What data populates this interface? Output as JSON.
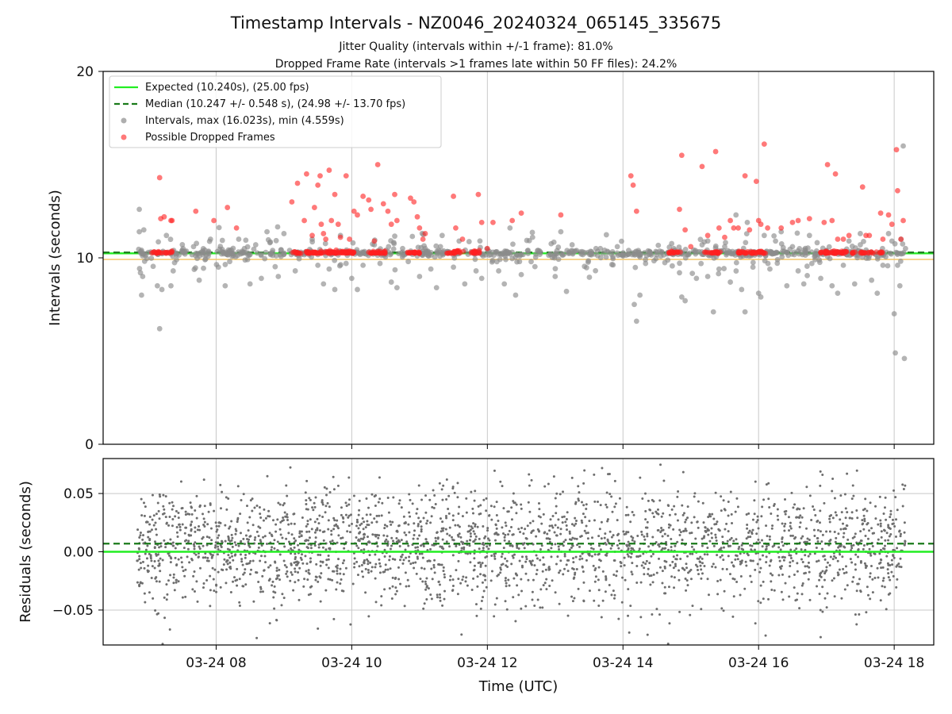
{
  "chart_data": [
    {
      "type": "scatter",
      "title": "Timestamp Intervals - NZ0046_20240324_065145_335675",
      "subtitle_lines": [
        "Jitter Quality (intervals within +/-1 frame): 81.0%",
        "Dropped Frame Rate (intervals >1 frames late within 50 FF files): 24.2%"
      ],
      "xlabel": "",
      "ylabel": "Intervals (seconds)",
      "xlim": [
        "2024-03-24T06:20",
        "2024-03-24T18:35"
      ],
      "ylim": [
        0,
        20
      ],
      "yticks": [
        "0",
        "10",
        "20"
      ],
      "grid": "x",
      "legend_position": "top-left",
      "expected_interval": 10.24,
      "median_interval": 10.247,
      "series": [
        {
          "name": "Expected (10.240s), (25.00 fps)",
          "kind": "hline",
          "value": 10.24,
          "color": "#22ee22"
        },
        {
          "name": "Median (10.247 +/- 0.548 s), (24.98 +/- 13.70 fps)",
          "kind": "hline-dashed",
          "value": 10.247,
          "color": "#1a7a1a"
        },
        {
          "name": "Intervals, max (16.023s), min (4.559s)",
          "kind": "scatter",
          "color": "#8c8c8c",
          "points": [
            [
              "06:52",
              12.6
            ],
            [
              "06:52",
              11.4
            ],
            [
              "06:53",
              9.2
            ],
            [
              "06:54",
              8.0
            ],
            [
              "06:56",
              11.5
            ],
            [
              "06:55",
              9.0
            ],
            [
              "07:08",
              8.5
            ],
            [
              "07:10",
              6.2
            ],
            [
              "07:12",
              8.3
            ],
            [
              "07:16",
              11.2
            ],
            [
              "07:20",
              8.5
            ],
            [
              "07:22",
              9.3
            ],
            [
              "07:25",
              9.9
            ],
            [
              "07:30",
              10.4
            ],
            [
              "07:40",
              10.6
            ],
            [
              "07:45",
              8.8
            ],
            [
              "07:55",
              11.0
            ],
            [
              "08:02",
              9.5
            ],
            [
              "08:08",
              8.5
            ],
            [
              "08:12",
              9.8
            ],
            [
              "08:20",
              11.0
            ],
            [
              "08:25",
              10.5
            ],
            [
              "08:30",
              8.6
            ],
            [
              "08:35",
              10.7
            ],
            [
              "08:40",
              8.9
            ],
            [
              "08:45",
              11.4
            ],
            [
              "08:50",
              10.4
            ],
            [
              "08:55",
              9.0
            ],
            [
              "09:00",
              11.3
            ],
            [
              "09:05",
              10.4
            ],
            [
              "09:10",
              9.3
            ],
            [
              "09:15",
              10.3
            ],
            [
              "09:25",
              11.0
            ],
            [
              "09:30",
              9.6
            ],
            [
              "09:35",
              8.6
            ],
            [
              "09:40",
              9.4
            ],
            [
              "09:45",
              8.3
            ],
            [
              "09:50",
              11.2
            ],
            [
              "09:55",
              9.7
            ],
            [
              "10:00",
              8.9
            ],
            [
              "10:05",
              8.3
            ],
            [
              "10:10",
              9.6
            ],
            [
              "10:20",
              10.7
            ],
            [
              "10:25",
              9.7
            ],
            [
              "10:35",
              8.7
            ],
            [
              "10:40",
              8.4
            ],
            [
              "10:45",
              10.5
            ],
            [
              "10:50",
              9.8
            ],
            [
              "11:00",
              9.0
            ],
            [
              "11:05",
              10.5
            ],
            [
              "11:10",
              9.4
            ],
            [
              "11:15",
              8.4
            ],
            [
              "11:20",
              11.2
            ],
            [
              "11:30",
              9.5
            ],
            [
              "11:35",
              10.9
            ],
            [
              "11:40",
              8.6
            ],
            [
              "11:50",
              9.3
            ],
            [
              "11:55",
              8.9
            ],
            [
              "12:05",
              10.3
            ],
            [
              "12:10",
              9.3
            ],
            [
              "12:15",
              8.6
            ],
            [
              "12:20",
              11.6
            ],
            [
              "12:25",
              8.0
            ],
            [
              "12:30",
              9.1
            ],
            [
              "12:40",
              11.1
            ],
            [
              "12:45",
              10.4
            ],
            [
              "13:00",
              9.0
            ],
            [
              "13:05",
              11.4
            ],
            [
              "13:10",
              8.2
            ],
            [
              "13:15",
              10.7
            ],
            [
              "13:25",
              10.3
            ],
            [
              "13:40",
              10.5
            ],
            [
              "13:55",
              10.6
            ],
            [
              "14:05",
              10.4
            ],
            [
              "14:10",
              7.5
            ],
            [
              "14:12",
              6.6
            ],
            [
              "14:15",
              8.0
            ],
            [
              "14:20",
              9.7
            ],
            [
              "14:30",
              10.3
            ],
            [
              "14:40",
              10.3
            ],
            [
              "14:45",
              10.5
            ],
            [
              "14:50",
              9.2
            ],
            [
              "14:52",
              7.9
            ],
            [
              "14:55",
              7.7
            ],
            [
              "15:05",
              8.9
            ],
            [
              "15:10",
              10.7
            ],
            [
              "15:15",
              9.0
            ],
            [
              "15:20",
              7.1
            ],
            [
              "15:25",
              9.4
            ],
            [
              "15:30",
              10.6
            ],
            [
              "15:35",
              8.7
            ],
            [
              "15:40",
              12.3
            ],
            [
              "15:45",
              8.3
            ],
            [
              "15:48",
              7.1
            ],
            [
              "15:50",
              11.9
            ],
            [
              "15:55",
              9.5
            ],
            [
              "16:00",
              8.1
            ],
            [
              "16:02",
              7.9
            ],
            [
              "16:05",
              11.2
            ],
            [
              "16:10",
              9.4
            ],
            [
              "16:15",
              10.9
            ],
            [
              "16:20",
              11.4
            ],
            [
              "16:25",
              8.5
            ],
            [
              "16:30",
              10.6
            ],
            [
              "16:35",
              9.3
            ],
            [
              "16:40",
              8.6
            ],
            [
              "16:45",
              11.2
            ],
            [
              "16:50",
              9.9
            ],
            [
              "16:55",
              8.9
            ],
            [
              "17:00",
              10.4
            ],
            [
              "17:05",
              8.5
            ],
            [
              "17:10",
              8.1
            ],
            [
              "17:15",
              9.6
            ],
            [
              "17:20",
              10.9
            ],
            [
              "17:25",
              8.6
            ],
            [
              "17:30",
              11.3
            ],
            [
              "17:35",
              10.2
            ],
            [
              "17:40",
              8.8
            ],
            [
              "17:45",
              8.1
            ],
            [
              "17:50",
              9.6
            ],
            [
              "17:55",
              11.3
            ],
            [
              "17:58",
              10.9
            ],
            [
              "18:00",
              7.0
            ],
            [
              "18:01",
              4.9
            ],
            [
              "18:03",
              9.6
            ],
            [
              "18:05",
              8.5
            ],
            [
              "18:06",
              11.0
            ],
            [
              "18:08",
              16.0
            ],
            [
              "18:09",
              4.6
            ],
            [
              "18:10",
              10.5
            ]
          ]
        },
        {
          "name": "Possible Dropped Frames",
          "kind": "scatter",
          "color": "#ff2020",
          "points": [
            [
              "07:10",
              14.3
            ],
            [
              "07:11",
              12.1
            ],
            [
              "07:14",
              12.2
            ],
            [
              "07:20",
              12.0
            ],
            [
              "07:21",
              12.0
            ],
            [
              "07:42",
              12.5
            ],
            [
              "07:58",
              12.0
            ],
            [
              "08:10",
              12.7
            ],
            [
              "08:18",
              11.6
            ],
            [
              "09:07",
              13.0
            ],
            [
              "09:12",
              14.0
            ],
            [
              "09:18",
              12.0
            ],
            [
              "09:20",
              14.5
            ],
            [
              "09:25",
              11.2
            ],
            [
              "09:27",
              12.7
            ],
            [
              "09:30",
              13.9
            ],
            [
              "09:32",
              14.4
            ],
            [
              "09:33",
              11.8
            ],
            [
              "09:35",
              11.3
            ],
            [
              "09:37",
              11.0
            ],
            [
              "09:40",
              14.7
            ],
            [
              "09:42",
              12.0
            ],
            [
              "09:45",
              13.4
            ],
            [
              "09:48",
              11.8
            ],
            [
              "09:50",
              11.1
            ],
            [
              "09:55",
              14.4
            ],
            [
              "09:58",
              11.0
            ],
            [
              "10:02",
              12.5
            ],
            [
              "10:05",
              12.3
            ],
            [
              "10:10",
              13.3
            ],
            [
              "10:15",
              13.1
            ],
            [
              "10:17",
              12.6
            ],
            [
              "10:20",
              10.9
            ],
            [
              "10:23",
              15.0
            ],
            [
              "10:28",
              12.9
            ],
            [
              "10:32",
              12.5
            ],
            [
              "10:35",
              11.8
            ],
            [
              "10:38",
              13.4
            ],
            [
              "10:40",
              12.0
            ],
            [
              "10:52",
              13.2
            ],
            [
              "10:55",
              13.0
            ],
            [
              "10:58",
              12.2
            ],
            [
              "11:00",
              11.6
            ],
            [
              "11:03",
              11.0
            ],
            [
              "11:05",
              11.3
            ],
            [
              "11:30",
              13.3
            ],
            [
              "11:32",
              11.6
            ],
            [
              "11:38",
              11.0
            ],
            [
              "11:52",
              13.4
            ],
            [
              "11:55",
              11.9
            ],
            [
              "12:00",
              10.5
            ],
            [
              "12:05",
              11.9
            ],
            [
              "12:22",
              12.0
            ],
            [
              "12:30",
              12.4
            ],
            [
              "13:05",
              12.3
            ],
            [
              "14:07",
              14.4
            ],
            [
              "14:09",
              13.9
            ],
            [
              "14:12",
              12.5
            ],
            [
              "14:50",
              12.6
            ],
            [
              "14:52",
              15.5
            ],
            [
              "14:55",
              11.5
            ],
            [
              "15:00",
              10.6
            ],
            [
              "15:10",
              14.9
            ],
            [
              "15:15",
              11.2
            ],
            [
              "15:22",
              15.7
            ],
            [
              "15:25",
              11.6
            ],
            [
              "15:30",
              11.1
            ],
            [
              "15:35",
              12.0
            ],
            [
              "15:38",
              11.6
            ],
            [
              "15:42",
              11.6
            ],
            [
              "15:48",
              14.4
            ],
            [
              "15:52",
              11.5
            ],
            [
              "15:58",
              14.1
            ],
            [
              "16:00",
              12.0
            ],
            [
              "16:02",
              11.8
            ],
            [
              "16:05",
              16.1
            ],
            [
              "16:08",
              11.6
            ],
            [
              "16:20",
              11.6
            ],
            [
              "16:30",
              11.9
            ],
            [
              "16:35",
              12.0
            ],
            [
              "16:45",
              12.1
            ],
            [
              "16:58",
              11.9
            ],
            [
              "17:01",
              15.0
            ],
            [
              "17:05",
              12.0
            ],
            [
              "17:08",
              14.5
            ],
            [
              "17:10",
              11.0
            ],
            [
              "17:15",
              11.0
            ],
            [
              "17:20",
              11.2
            ],
            [
              "17:32",
              13.8
            ],
            [
              "17:35",
              11.2
            ],
            [
              "17:38",
              11.2
            ],
            [
              "17:48",
              12.4
            ],
            [
              "17:50",
              11.0
            ],
            [
              "17:55",
              12.3
            ],
            [
              "17:58",
              11.8
            ],
            [
              "18:02",
              15.8
            ],
            [
              "18:03",
              13.6
            ],
            [
              "18:06",
              11.0
            ],
            [
              "18:08",
              12.0
            ]
          ]
        }
      ]
    },
    {
      "type": "scatter",
      "title": "",
      "xlabel": "Time (UTC)",
      "ylabel": "Residuals (seconds)",
      "xlim": [
        "2024-03-24T06:20",
        "2024-03-24T18:35"
      ],
      "ylim": [
        -0.08,
        0.08
      ],
      "xticks": [
        "03-24 08",
        "03-24 10",
        "03-24 12",
        "03-24 14",
        "03-24 16",
        "03-24 18"
      ],
      "xtick_values": [
        "08:00",
        "10:00",
        "12:00",
        "14:00",
        "16:00",
        "18:00"
      ],
      "yticks": [
        "−0.05",
        "0.00",
        "0.05"
      ],
      "ytick_values": [
        -0.05,
        0.0,
        0.05
      ],
      "grid": "both",
      "zero_line": 0.0,
      "median_line": 0.007,
      "residual_points": {
        "count": 2600,
        "x_range": [
          "06:50",
          "18:10"
        ],
        "spread_sd": 0.025,
        "color": "#6e6e6e"
      }
    }
  ]
}
